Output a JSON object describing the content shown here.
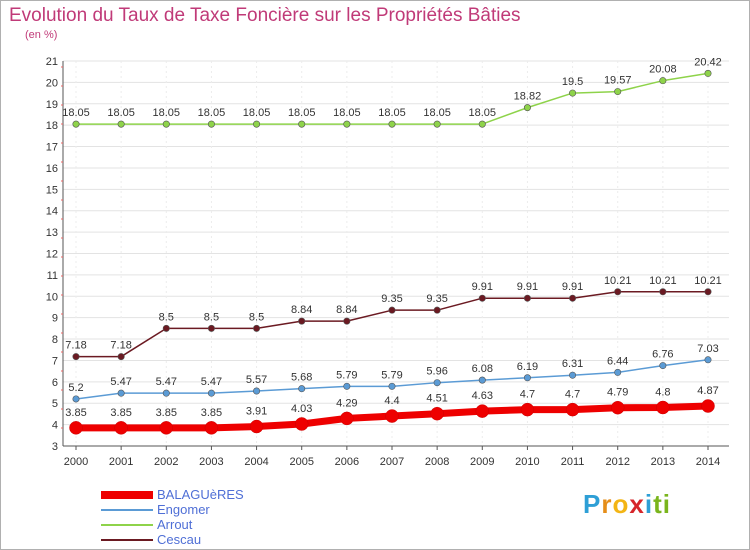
{
  "header": {
    "title": "Evolution du Taux de Taxe Foncière sur les Propriétés Bâties",
    "subtitle": "(en %)"
  },
  "brand": {
    "letters": [
      "P",
      "r",
      "o",
      "x",
      "i",
      "t",
      "i"
    ],
    "colors": [
      "#2e9fd6",
      "#e58e1a",
      "#f3b515",
      "#d6252a",
      "#2e9fd6",
      "#7ab51d",
      "#7ab51d"
    ]
  },
  "chart_data": {
    "type": "line",
    "x": [
      2000,
      2001,
      2002,
      2003,
      2004,
      2005,
      2006,
      2007,
      2008,
      2009,
      2010,
      2011,
      2012,
      2013,
      2014
    ],
    "ylim": [
      3,
      21
    ],
    "yticks": [
      3,
      4,
      5,
      6,
      7,
      8,
      9,
      10,
      11,
      12,
      13,
      14,
      15,
      16,
      17,
      18,
      19,
      20,
      21
    ],
    "grid": "horizontal",
    "legend_position": "bottom-left",
    "series": [
      {
        "name": "BALAGUèRES",
        "color": "#ee0000",
        "values": [
          3.85,
          3.85,
          3.85,
          3.85,
          3.91,
          4.03,
          4.29,
          4.4,
          4.51,
          4.63,
          4.7,
          4.7,
          4.79,
          4.8,
          4.87
        ],
        "labels": [
          "3.85",
          "3.85",
          "3.85",
          "3.85",
          "3.91",
          "4.03",
          "4.29",
          "4.4",
          "4.51",
          "4.63",
          "4.7",
          "4.7",
          "4.79",
          "4.8",
          "4.87"
        ]
      },
      {
        "name": "Engomer",
        "color": "#5b9bd5",
        "values": [
          5.2,
          5.47,
          5.47,
          5.47,
          5.57,
          5.68,
          5.79,
          5.79,
          5.96,
          6.08,
          6.19,
          6.31,
          6.44,
          6.76,
          7.03
        ],
        "labels": [
          "5.2",
          "5.47",
          "5.47",
          "5.47",
          "5.57",
          "5.68",
          "5.79",
          "5.79",
          "5.96",
          "6.08",
          "6.19",
          "6.31",
          "6.44",
          "6.76",
          "7.03"
        ]
      },
      {
        "name": "Arrout",
        "color": "#8ed34a",
        "values": [
          18.05,
          18.05,
          18.05,
          18.05,
          18.05,
          18.05,
          18.05,
          18.05,
          18.05,
          18.05,
          18.82,
          19.5,
          19.57,
          20.08,
          20.42
        ],
        "labels": [
          "18.05",
          "18.05",
          "18.05",
          "18.05",
          "18.05",
          "18.05",
          "18.05",
          "18.05",
          "18.05",
          "18.05",
          "18.82",
          "19.5",
          "19.57",
          "20.08",
          "20.42"
        ]
      },
      {
        "name": "Cescau",
        "color": "#6b1a22",
        "values": [
          7.18,
          7.18,
          8.5,
          8.5,
          8.5,
          8.84,
          8.84,
          9.35,
          9.35,
          9.91,
          9.91,
          9.91,
          10.21,
          10.21,
          10.21
        ],
        "labels": [
          "7.18",
          "7.18",
          "8.5",
          "8.5",
          "8.5",
          "8.84",
          "8.84",
          "9.35",
          "9.35",
          "9.91",
          "9.91",
          "9.91",
          "10.21",
          "10.21",
          "10.21"
        ]
      }
    ]
  }
}
